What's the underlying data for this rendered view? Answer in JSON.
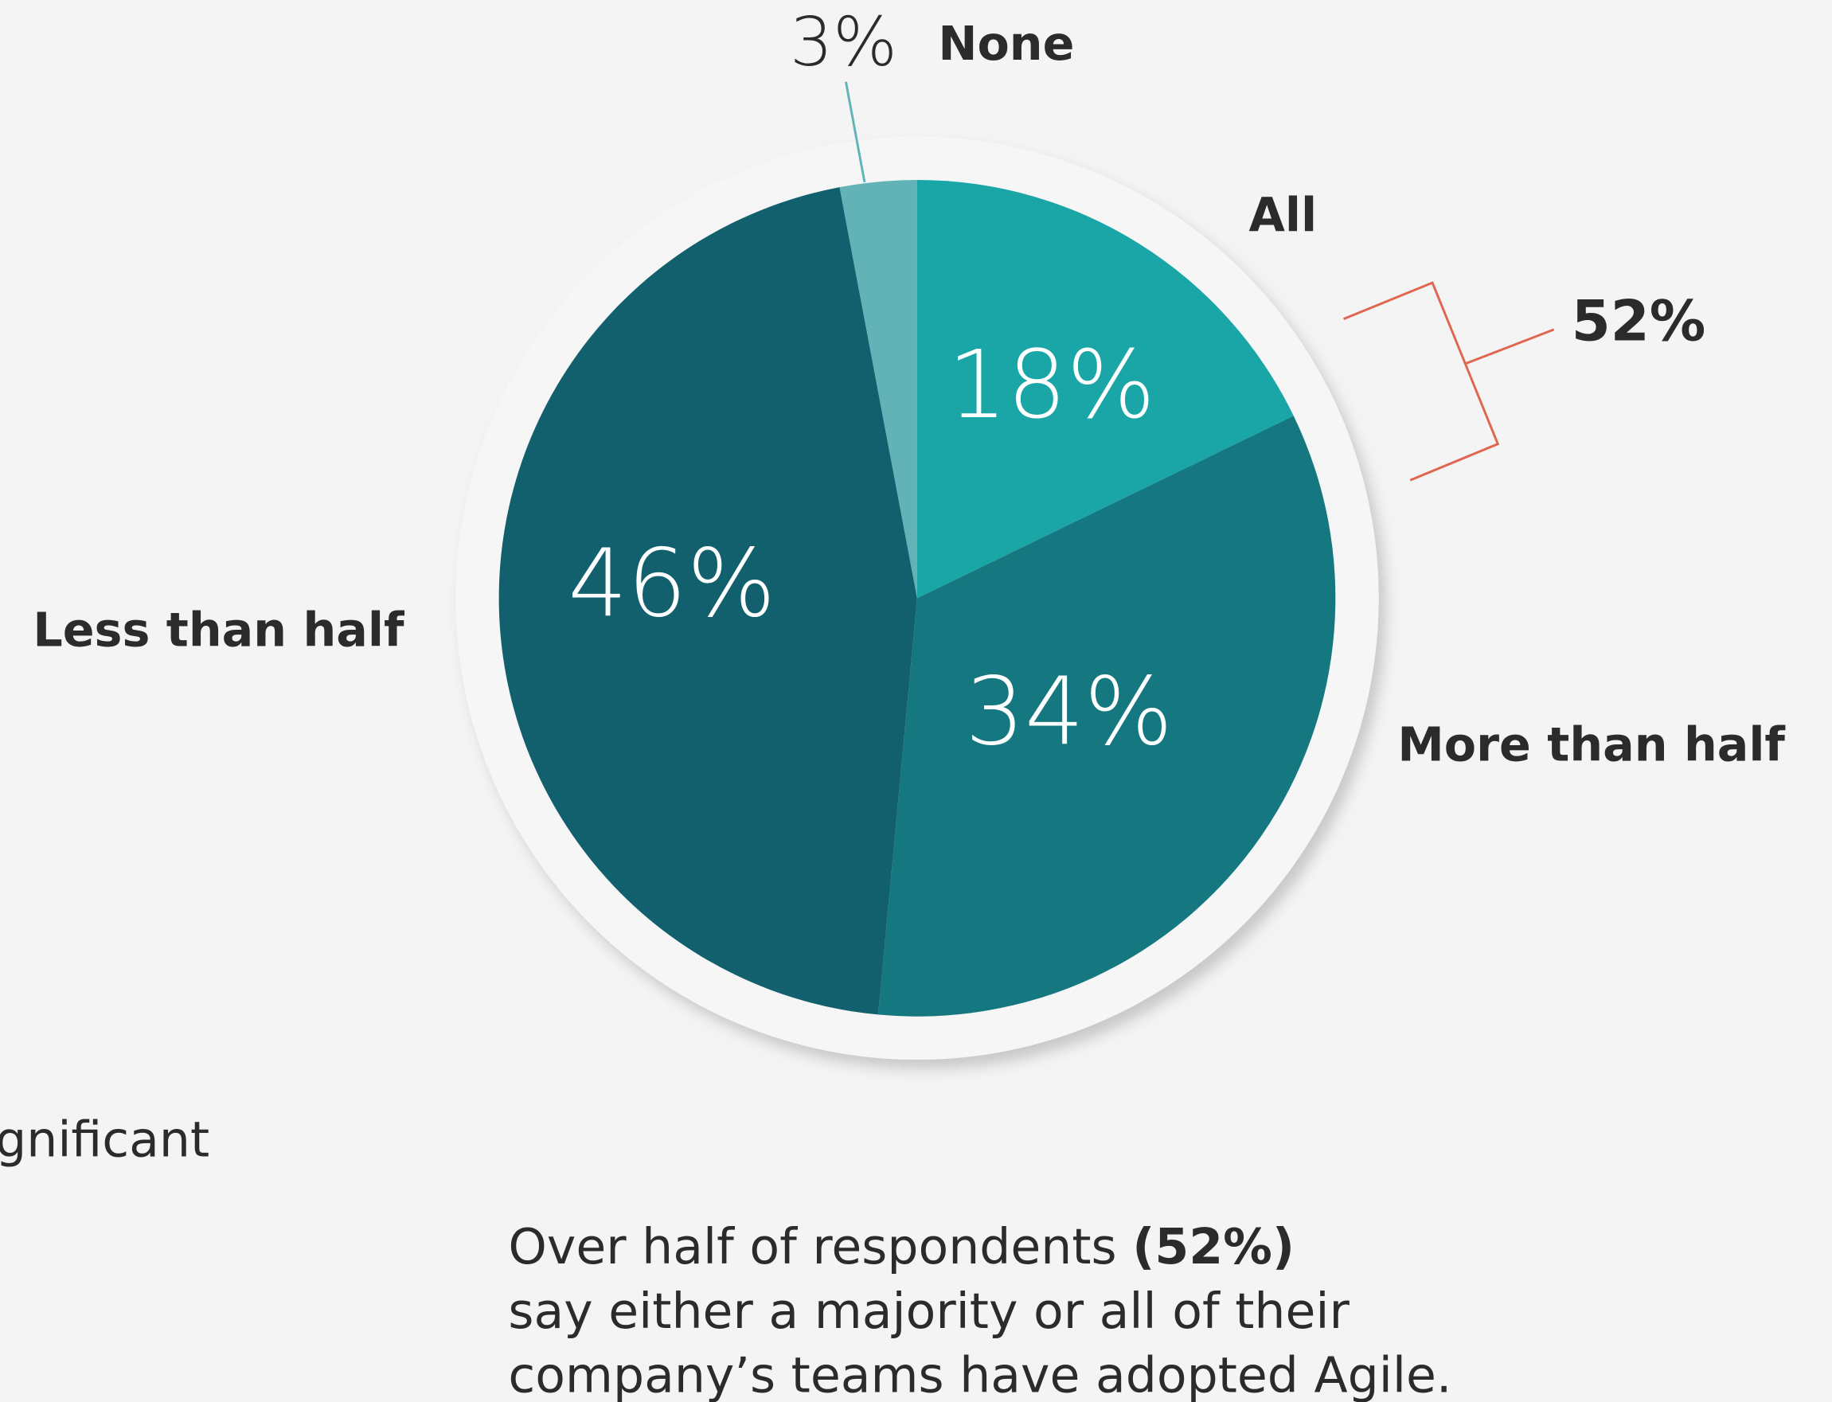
{
  "chart_data": {
    "type": "pie",
    "categories": [
      "All",
      "More than half",
      "Less than half",
      "None"
    ],
    "values": [
      18,
      34,
      46,
      3
    ],
    "value_labels": [
      "18%",
      "34%",
      "46%",
      "3%"
    ],
    "colors": [
      "#1aa5a6",
      "#15777f",
      "#12606e",
      "#62b3b7"
    ],
    "annotation": "52%",
    "side_text": "gnificant",
    "caption": [
      "Over half of respondents",
      "(52%)",
      "say either a majority or all of their",
      "company’s teams have adopted Agile."
    ]
  }
}
